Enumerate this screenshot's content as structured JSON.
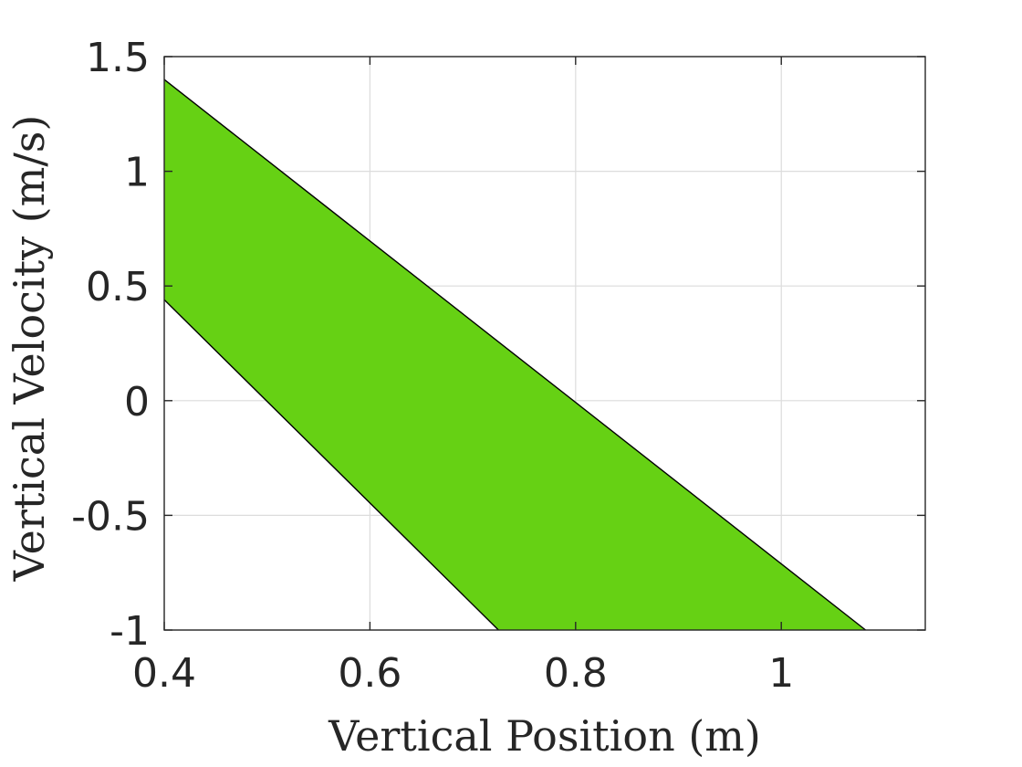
{
  "chart_data": {
    "type": "area",
    "title": "",
    "xlabel": "Vertical Position (m)",
    "ylabel": "Vertical Velocity (m/s)",
    "xlim": [
      0.4,
      1.14
    ],
    "ylim": [
      -1,
      1.5
    ],
    "xticks": [
      0.4,
      0.6,
      0.8,
      1.0
    ],
    "xtick_labels": [
      "0.4",
      "0.6",
      "0.8",
      "1"
    ],
    "yticks": [
      -1,
      -0.5,
      0,
      0.5,
      1,
      1.5
    ],
    "ytick_labels": [
      "-1",
      "-0.5",
      "0",
      "0.5",
      "1",
      "1.5"
    ],
    "grid": true,
    "series": [
      {
        "fill_color": "#66d114",
        "edge_color": "#000000",
        "upper_boundary": [
          [
            0.4,
            1.4
          ],
          [
            1.082,
            -1.0
          ]
        ],
        "lower_boundary": [
          [
            0.4,
            0.44
          ],
          [
            0.725,
            -1.0
          ]
        ]
      }
    ]
  }
}
